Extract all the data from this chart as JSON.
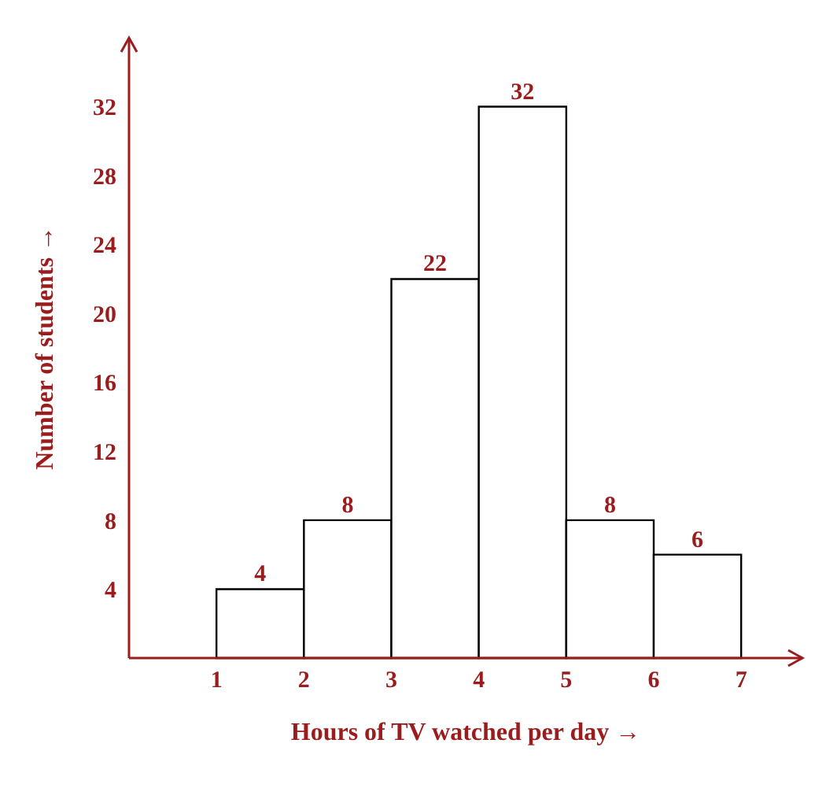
{
  "chart_data": {
    "type": "histogram",
    "xlabel": "Hours of TV watched per day →",
    "ylabel": "Number of students →",
    "bins": [
      1,
      2,
      3,
      4,
      5,
      6,
      7
    ],
    "values": [
      4,
      8,
      22,
      32,
      8,
      6
    ],
    "color": "#ffffff",
    "xlim": [
      0,
      7.7
    ],
    "xticks": [
      1,
      2,
      3,
      4,
      5,
      6,
      7
    ],
    "ylim": [
      0,
      36
    ],
    "yticks": [
      4,
      8,
      12,
      16,
      20,
      24,
      28,
      32
    ],
    "data_labels": true
  }
}
